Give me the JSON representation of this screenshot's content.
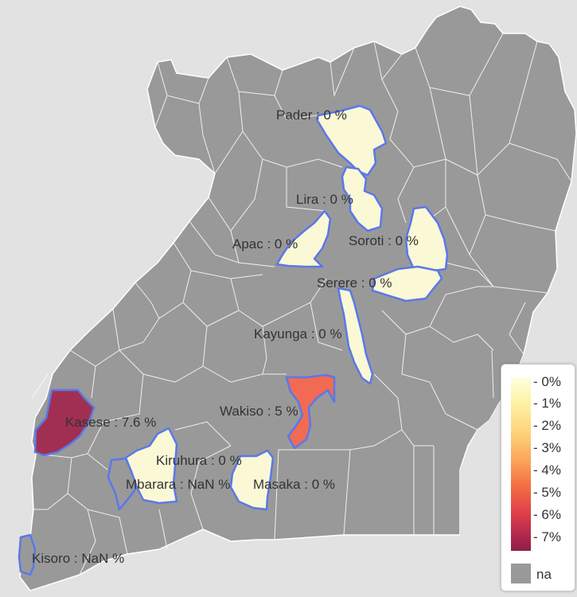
{
  "map": {
    "colors": {
      "background": "#e2e2e2",
      "na_fill": "#999999",
      "district_border": "#ffffff",
      "highlight_border": "#5a78ea",
      "zero_fill": "#fbf8d6",
      "kasese_fill": "#a12f52",
      "wakiso_fill": "#f26a52"
    },
    "districts": [
      {
        "name": "Pader",
        "value": 0,
        "label": "Pader : 0 %"
      },
      {
        "name": "Lira",
        "value": 0,
        "label": "Lira : 0 %"
      },
      {
        "name": "Apac",
        "value": 0,
        "label": "Apac : 0 %"
      },
      {
        "name": "Soroti",
        "value": 0,
        "label": "Soroti : 0 %"
      },
      {
        "name": "Serere",
        "value": 0,
        "label": "Serere : 0 %"
      },
      {
        "name": "Kayunga",
        "value": 0,
        "label": "Kayunga : 0 %"
      },
      {
        "name": "Wakiso",
        "value": 5,
        "label": "Wakiso : 5 %"
      },
      {
        "name": "Kasese",
        "value": 7.6,
        "label": "Kasese : 7.6 %"
      },
      {
        "name": "Kiruhura",
        "value": 0,
        "label": "Kiruhura : 0 %"
      },
      {
        "name": "Mbarara",
        "value": null,
        "label": "Mbarara : NaN %"
      },
      {
        "name": "Masaka",
        "value": 0,
        "label": "Masaka : 0 %"
      },
      {
        "name": "Kisoro",
        "value": null,
        "label": "Kisoro : NaN %"
      }
    ]
  },
  "legend": {
    "ticks": [
      "0%",
      "1%",
      "2%",
      "3%",
      "4%",
      "5%",
      "6%",
      "7%"
    ],
    "na_label": "na",
    "colors": [
      "#ffffe0",
      "#fdf3a8",
      "#fdd37a",
      "#fca55a",
      "#f47044",
      "#e0404a",
      "#b52a4f",
      "#8c1f4a"
    ]
  }
}
